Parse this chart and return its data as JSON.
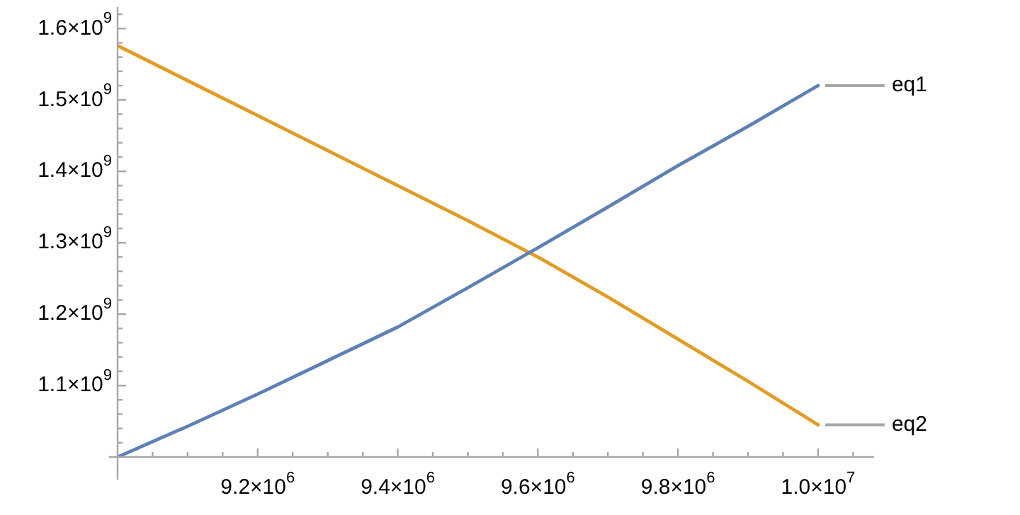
{
  "chart_data": {
    "type": "line",
    "x": [
      9000000,
      9100000,
      9200000,
      9300000,
      9400000,
      9500000,
      9600000,
      9700000,
      9800000,
      9900000,
      10000000
    ],
    "series": [
      {
        "name": "eq1",
        "color": "#5e81b5",
        "values": [
          1000000000,
          1043000000,
          1088000000,
          1135000000,
          1182000000,
          1237000000,
          1293000000,
          1350000000,
          1408000000,
          1463000000,
          1520000000
        ]
      },
      {
        "name": "eq2",
        "color": "#e19c24",
        "values": [
          1576000000,
          1527000000,
          1478000000,
          1429000000,
          1380000000,
          1331000000,
          1280000000,
          1224000000,
          1165000000,
          1106000000,
          1045000000
        ]
      }
    ],
    "xlim": [
      9000000,
      10080000
    ],
    "ylim": [
      1000000000,
      1630000000
    ],
    "xticks": [
      {
        "value": 9050000,
        "label": null
      },
      {
        "value": 9100000,
        "label": null
      },
      {
        "value": 9150000,
        "label": null
      },
      {
        "value": 9200000,
        "label": "9.2×10$^{6}$"
      },
      {
        "value": 9250000,
        "label": null
      },
      {
        "value": 9300000,
        "label": null
      },
      {
        "value": 9350000,
        "label": null
      },
      {
        "value": 9400000,
        "label": "9.4×10$^{6}$"
      },
      {
        "value": 9450000,
        "label": null
      },
      {
        "value": 9500000,
        "label": null
      },
      {
        "value": 9550000,
        "label": null
      },
      {
        "value": 9600000,
        "label": "9.6×10$^{6}$"
      },
      {
        "value": 9650000,
        "label": null
      },
      {
        "value": 9700000,
        "label": null
      },
      {
        "value": 9750000,
        "label": null
      },
      {
        "value": 9800000,
        "label": "9.8×10$^{6}$"
      },
      {
        "value": 9850000,
        "label": null
      },
      {
        "value": 9900000,
        "label": null
      },
      {
        "value": 9950000,
        "label": null
      },
      {
        "value": 10000000,
        "label": "1.0×10$^{7}$"
      },
      {
        "value": 10050000,
        "label": null
      }
    ],
    "yticks": [
      {
        "value": 1020000000,
        "label": null
      },
      {
        "value": 1040000000,
        "label": null
      },
      {
        "value": 1060000000,
        "label": null
      },
      {
        "value": 1080000000,
        "label": null
      },
      {
        "value": 1100000000,
        "label": "1.1×10$^{9}$"
      },
      {
        "value": 1120000000,
        "label": null
      },
      {
        "value": 1140000000,
        "label": null
      },
      {
        "value": 1160000000,
        "label": null
      },
      {
        "value": 1180000000,
        "label": null
      },
      {
        "value": 1200000000,
        "label": "1.2×10$^{9}$"
      },
      {
        "value": 1220000000,
        "label": null
      },
      {
        "value": 1240000000,
        "label": null
      },
      {
        "value": 1260000000,
        "label": null
      },
      {
        "value": 1280000000,
        "label": null
      },
      {
        "value": 1300000000,
        "label": "1.3×10$^{9}$"
      },
      {
        "value": 1320000000,
        "label": null
      },
      {
        "value": 1340000000,
        "label": null
      },
      {
        "value": 1360000000,
        "label": null
      },
      {
        "value": 1380000000,
        "label": null
      },
      {
        "value": 1400000000,
        "label": "1.4×10$^{9}$"
      },
      {
        "value": 1420000000,
        "label": null
      },
      {
        "value": 1440000000,
        "label": null
      },
      {
        "value": 1460000000,
        "label": null
      },
      {
        "value": 1480000000,
        "label": null
      },
      {
        "value": 1500000000,
        "label": "1.5×10$^{9}$"
      },
      {
        "value": 1520000000,
        "label": null
      },
      {
        "value": 1540000000,
        "label": null
      },
      {
        "value": 1560000000,
        "label": null
      },
      {
        "value": 1580000000,
        "label": null
      },
      {
        "value": 1600000000,
        "label": "1.6×10$^{9}$"
      },
      {
        "value": 1620000000,
        "label": null
      }
    ],
    "grid": false,
    "legend": false,
    "marker": "none",
    "line_style": "solid"
  }
}
